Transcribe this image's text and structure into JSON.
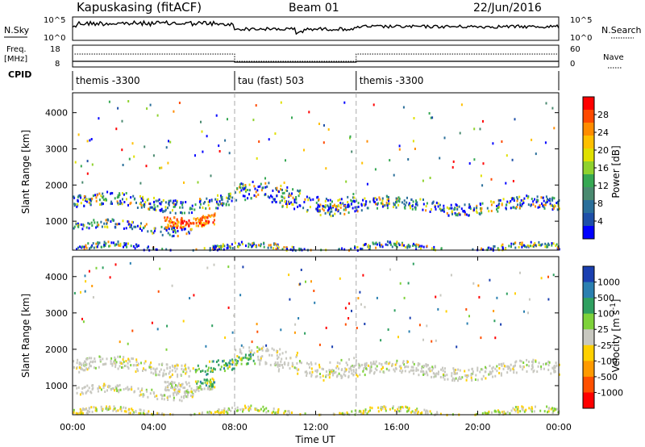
{
  "header": {
    "station": "Kapuskasing (fitACF)",
    "beam": "Beam 01",
    "date": "22/Jun/2016"
  },
  "time_axis": {
    "label": "Time UT",
    "range_hours": [
      0,
      24
    ],
    "ticks": [
      "00:00",
      "04:00",
      "08:00",
      "12:00",
      "16:00",
      "20:00",
      "00:00"
    ]
  },
  "panels": {
    "nsky": {
      "label": "N.Sky",
      "left_ticks": [
        "10^5",
        "10^0"
      ],
      "right_ticks": [
        "10^5",
        "10^0"
      ],
      "right_label": "N.Search"
    },
    "freq": {
      "label_line1": "Freq.",
      "label_line2": "[MHz]",
      "left_ticks": [
        "18",
        "8"
      ],
      "right_ticks": [
        "60",
        "0"
      ],
      "right_label": "Nave"
    },
    "cpid": {
      "label": "CPID",
      "modes": [
        {
          "name": "themis -3300",
          "start_hour": 0,
          "end_hour": 8
        },
        {
          "name": "tau (fast) 503",
          "start_hour": 8,
          "end_hour": 14
        },
        {
          "name": "themis -3300",
          "start_hour": 14,
          "end_hour": 24
        }
      ]
    }
  },
  "chart_data": [
    {
      "type": "heatmap",
      "title": "Power",
      "ylabel": "Slant Range [km]",
      "xlabel": "",
      "ylim": [
        200,
        4550
      ],
      "y_ticks": [
        1000,
        2000,
        3000,
        4000
      ],
      "colorbar": {
        "label": "Power [dB]",
        "ticks": [
          "28",
          "24",
          "20",
          "16",
          "12",
          "8",
          "4"
        ],
        "colors": [
          "#ff0000",
          "#ff4a00",
          "#ff8c00",
          "#ffc000",
          "#e0e000",
          "#8fd22e",
          "#36a853",
          "#4a8a70",
          "#2a6f9a",
          "#1e4fa8",
          "#0000ff"
        ]
      },
      "features": [
        {
          "desc_hours": [
            0,
            8
          ],
          "range_km": [
            1300,
            1800
          ],
          "level_db": 12
        },
        {
          "desc_hours": [
            4.5,
            7
          ],
          "range_km": [
            950,
            1250
          ],
          "level_db": 26
        },
        {
          "desc_hours": [
            8,
            11
          ],
          "range_km": [
            1500,
            2200
          ],
          "level_db": 18
        },
        {
          "desc_hours": [
            12,
            24
          ],
          "range_km": [
            1300,
            1800
          ],
          "level_db": 12
        }
      ]
    },
    {
      "type": "heatmap",
      "title": "Velocity",
      "ylabel": "Slant Range [km]",
      "xlabel": "Time UT",
      "ylim": [
        200,
        4550
      ],
      "y_ticks": [
        1000,
        2000,
        3000,
        4000
      ],
      "colorbar": {
        "label": "Velocity [m s^-1]",
        "ticks": [
          "1000",
          "500",
          "100",
          "25",
          "-25",
          "-100",
          "-500",
          "-1000"
        ],
        "colors": [
          "#1a3fb0",
          "#2a7fb0",
          "#2fa060",
          "#7ed23a",
          "#c8c8c0",
          "#ffd000",
          "#ff9a00",
          "#ff5000",
          "#ff0000"
        ]
      },
      "features": [
        {
          "desc_hours": [
            0,
            8
          ],
          "range_km": [
            1300,
            1800
          ],
          "vel": 0
        },
        {
          "desc_hours": [
            6,
            9
          ],
          "range_km": [
            1100,
            1700
          ],
          "vel": 150
        },
        {
          "desc_hours": [
            12,
            24
          ],
          "range_km": [
            1300,
            1800
          ],
          "vel": 0
        }
      ]
    }
  ]
}
